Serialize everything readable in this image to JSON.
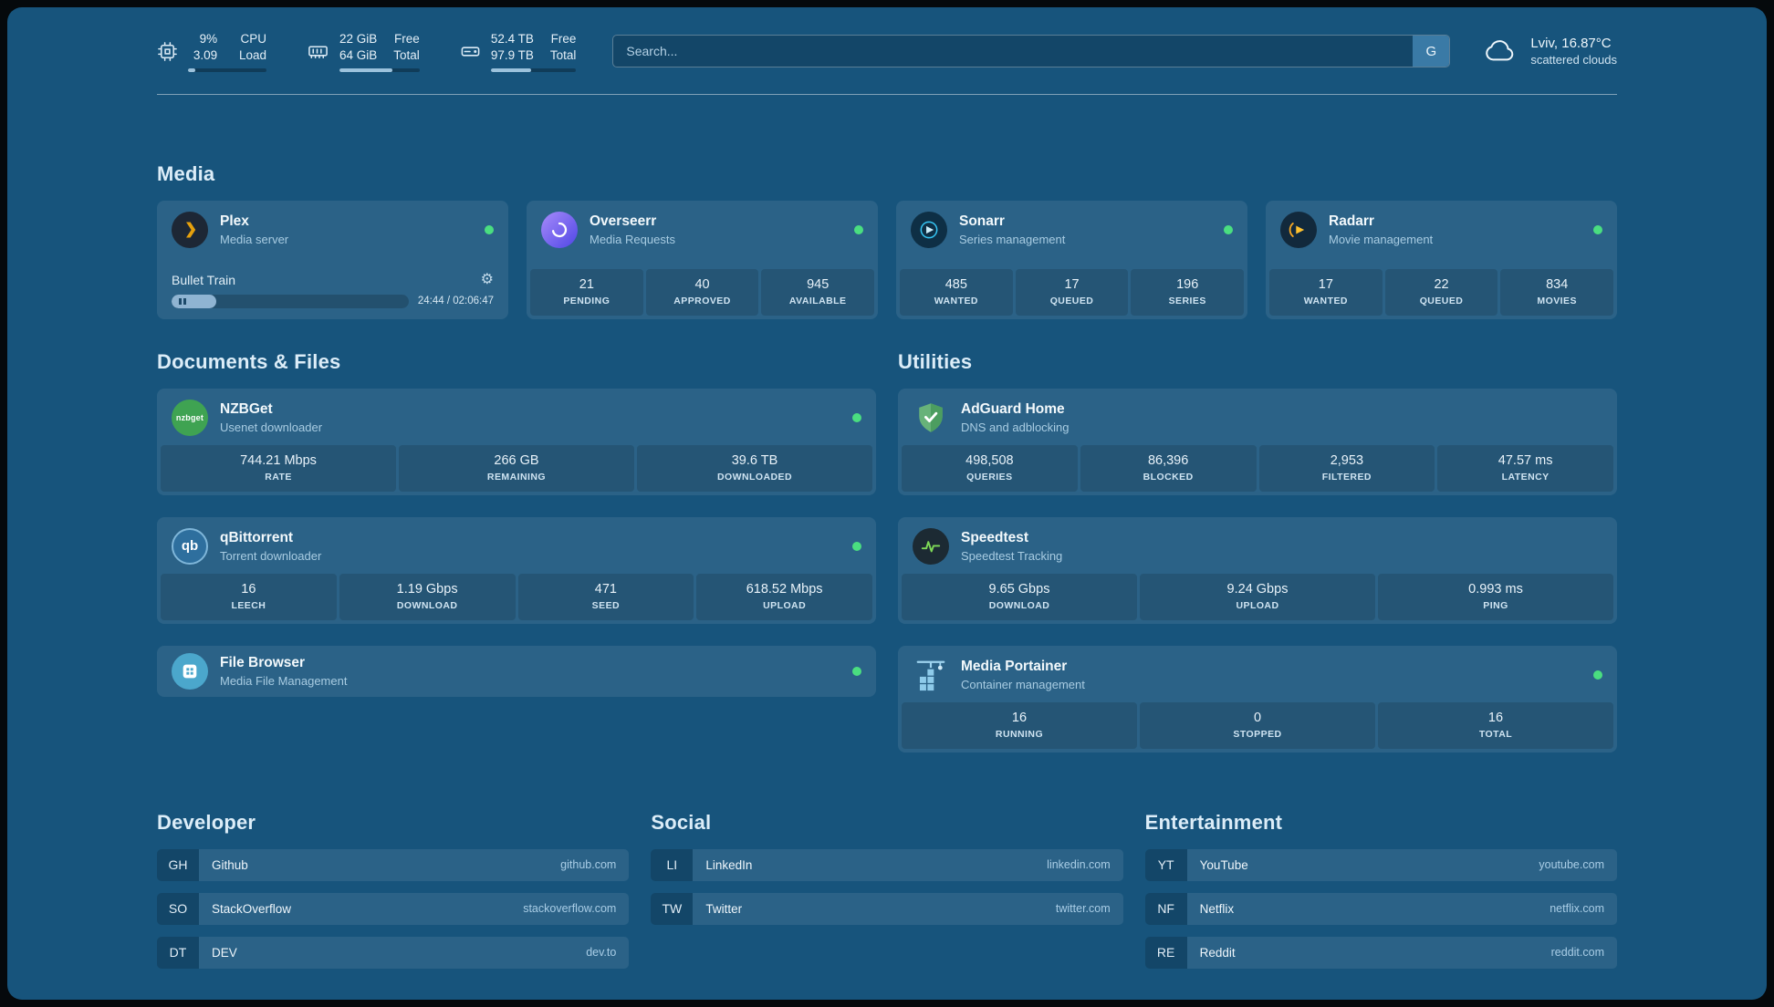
{
  "topbar": {
    "widgets": [
      {
        "icon": "cpu-icon",
        "value": "9%",
        "value2": "3.09",
        "label": "CPU",
        "label2": "Load",
        "progress": 9
      },
      {
        "icon": "memory-icon",
        "value": "22 GiB",
        "value2": "64 GiB",
        "label": "Free",
        "label2": "Total",
        "progress": 66
      },
      {
        "icon": "disk-icon",
        "value": "52.4 TB",
        "value2": "97.9 TB",
        "label": "Free",
        "label2": "Total",
        "progress": 47
      }
    ],
    "search": {
      "placeholder": "Search...",
      "button_label": "G"
    },
    "weather": {
      "icon": "cloud-icon",
      "location": "Lviv, 16.87°C",
      "condition": "scattered clouds"
    }
  },
  "sections": {
    "media": {
      "title": "Media",
      "cards": [
        {
          "icon": "plex-icon",
          "name": "Plex",
          "subtitle": "Media server",
          "status": "online",
          "now_playing": {
            "title": "Bullet Train",
            "time": "24:44 / 02:06:47",
            "progress": 19
          }
        },
        {
          "icon": "overseerr-icon",
          "name": "Overseerr",
          "subtitle": "Media Requests",
          "status": "online",
          "stats": [
            {
              "value": "21",
              "label": "PENDING"
            },
            {
              "value": "40",
              "label": "APPROVED"
            },
            {
              "value": "945",
              "label": "AVAILABLE"
            }
          ]
        },
        {
          "icon": "sonarr-icon",
          "name": "Sonarr",
          "subtitle": "Series management",
          "status": "online",
          "stats": [
            {
              "value": "485",
              "label": "WANTED"
            },
            {
              "value": "17",
              "label": "QUEUED"
            },
            {
              "value": "196",
              "label": "SERIES"
            }
          ]
        },
        {
          "icon": "radarr-icon",
          "name": "Radarr",
          "subtitle": "Movie management",
          "status": "online",
          "stats": [
            {
              "value": "17",
              "label": "WANTED"
            },
            {
              "value": "22",
              "label": "QUEUED"
            },
            {
              "value": "834",
              "label": "MOVIES"
            }
          ]
        }
      ]
    },
    "documents": {
      "title": "Documents & Files",
      "cards": [
        {
          "icon": "nzbget-icon",
          "name": "NZBGet",
          "subtitle": "Usenet downloader",
          "status": "online",
          "stats": [
            {
              "value": "744.21 Mbps",
              "label": "RATE"
            },
            {
              "value": "266 GB",
              "label": "REMAINING"
            },
            {
              "value": "39.6 TB",
              "label": "DOWNLOADED"
            }
          ]
        },
        {
          "icon": "qbittorrent-icon",
          "name": "qBittorrent",
          "subtitle": "Torrent downloader",
          "status": "online",
          "stats": [
            {
              "value": "16",
              "label": "LEECH"
            },
            {
              "value": "1.19 Gbps",
              "label": "DOWNLOAD"
            },
            {
              "value": "471",
              "label": "SEED"
            },
            {
              "value": "618.52 Mbps",
              "label": "UPLOAD"
            }
          ]
        },
        {
          "icon": "filebrowser-icon",
          "name": "File Browser",
          "subtitle": "Media File Management",
          "status": "online"
        }
      ]
    },
    "utilities": {
      "title": "Utilities",
      "cards": [
        {
          "icon": "adguard-icon",
          "name": "AdGuard Home",
          "subtitle": "DNS and adblocking",
          "stats": [
            {
              "value": "498,508",
              "label": "QUERIES"
            },
            {
              "value": "86,396",
              "label": "BLOCKED"
            },
            {
              "value": "2,953",
              "label": "FILTERED"
            },
            {
              "value": "47.57 ms",
              "label": "LATENCY"
            }
          ]
        },
        {
          "icon": "speedtest-icon",
          "name": "Speedtest",
          "subtitle": "Speedtest Tracking",
          "stats": [
            {
              "value": "9.65 Gbps",
              "label": "DOWNLOAD"
            },
            {
              "value": "9.24 Gbps",
              "label": "UPLOAD"
            },
            {
              "value": "0.993 ms",
              "label": "PING"
            }
          ]
        },
        {
          "icon": "portainer-icon",
          "name": "Media Portainer",
          "subtitle": "Container management",
          "status": "online",
          "stats": [
            {
              "value": "16",
              "label": "RUNNING"
            },
            {
              "value": "0",
              "label": "STOPPED"
            },
            {
              "value": "16",
              "label": "TOTAL"
            }
          ]
        }
      ]
    },
    "bookmarks": [
      {
        "title": "Developer",
        "items": [
          {
            "abbr": "GH",
            "name": "Github",
            "url": "github.com"
          },
          {
            "abbr": "SO",
            "name": "StackOverflow",
            "url": "stackoverflow.com"
          },
          {
            "abbr": "DT",
            "name": "DEV",
            "url": "dev.to"
          }
        ]
      },
      {
        "title": "Social",
        "items": [
          {
            "abbr": "LI",
            "name": "LinkedIn",
            "url": "linkedin.com"
          },
          {
            "abbr": "TW",
            "name": "Twitter",
            "url": "twitter.com"
          }
        ]
      },
      {
        "title": "Entertainment",
        "items": [
          {
            "abbr": "YT",
            "name": "YouTube",
            "url": "youtube.com"
          },
          {
            "abbr": "NF",
            "name": "Netflix",
            "url": "netflix.com"
          },
          {
            "abbr": "RE",
            "name": "Reddit",
            "url": "reddit.com"
          }
        ]
      }
    ]
  },
  "colors": {
    "background": "#17547c",
    "card": "#26628b",
    "status_online": "#4ade80",
    "accent_text": "#dcedf8"
  }
}
